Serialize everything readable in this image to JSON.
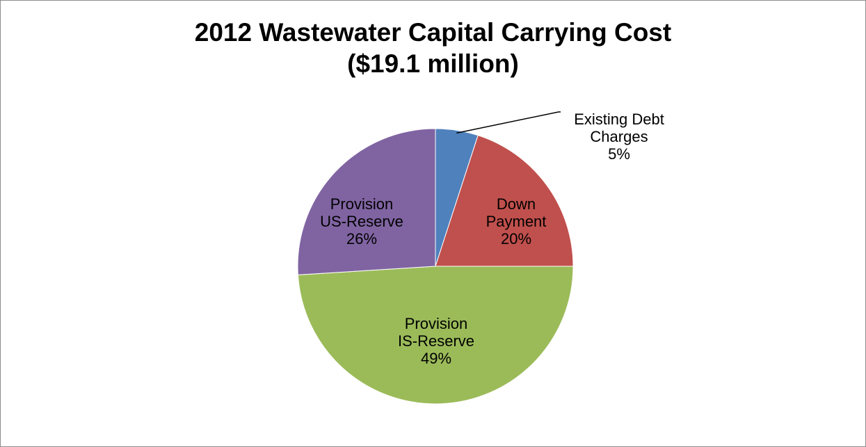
{
  "chart_data": {
    "type": "pie",
    "title": [
      "2012 Wastewater Capital Carrying Cost",
      "($19.1 million)"
    ],
    "slices": [
      {
        "label_lines": [
          "Existing Debt",
          "Charges",
          "5%"
        ],
        "value": 5,
        "color": "#4f81bd",
        "label_position": "outside"
      },
      {
        "label_lines": [
          "Down",
          "Payment",
          "20%"
        ],
        "value": 20,
        "color": "#c0504d",
        "label_position": "inside"
      },
      {
        "label_lines": [
          "Provision",
          "IS-Reserve",
          "49%"
        ],
        "value": 49,
        "color": "#9bbb59",
        "label_position": "inside"
      },
      {
        "label_lines": [
          "Provision",
          "US-Reserve",
          "26%"
        ],
        "value": 26,
        "color": "#8064a2",
        "label_position": "inside"
      }
    ],
    "legend": "none",
    "start_angle": "12 o'clock",
    "direction": "clockwise"
  }
}
